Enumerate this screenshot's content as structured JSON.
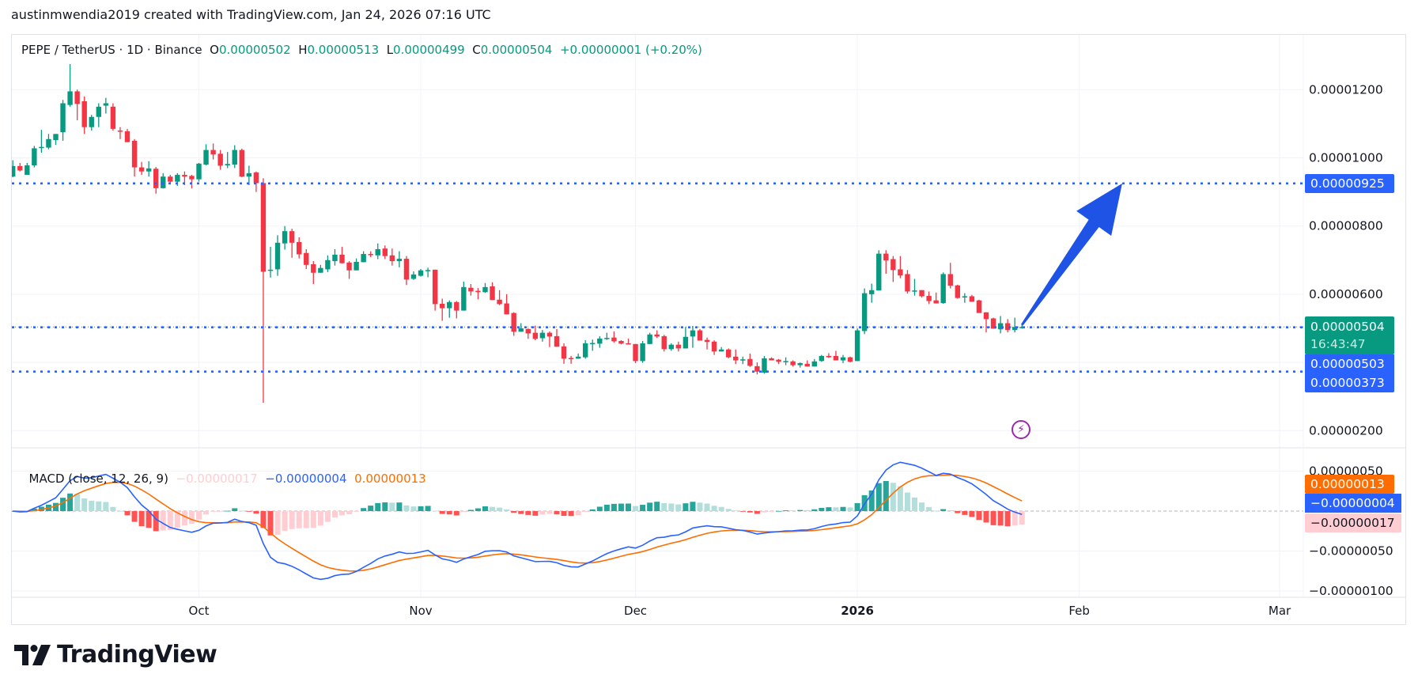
{
  "watermark": "austinmwendia2019 created with TradingView.com, Jan 24, 2026 07:16 UTC",
  "legend": {
    "symbol": "PEPE / TetherUS · 1D · Binance",
    "open_label": "O",
    "open": "0.00000502",
    "high_label": "H",
    "high": "0.00000513",
    "low_label": "L",
    "low": "0.00000499",
    "close_label": "C",
    "close": "0.00000504",
    "change": "+0.00000001 (+0.20%)"
  },
  "macd_legend": {
    "title": "MACD (close, 12, 26, 9)",
    "histogram": "−0.00000017",
    "macd": "−0.00000004",
    "signal": "0.00000013"
  },
  "price_tags": {
    "target": "0.00000925",
    "last_price": "0.00000504",
    "countdown": "16:43:47",
    "line_a": "0.00000503",
    "line_b": "0.00000373"
  },
  "macd_tags": {
    "signal": "0.00000013",
    "macd": "−0.00000004",
    "histogram": "−0.00000017"
  },
  "logo_text": "TradingView",
  "colors": {
    "up": "#089981",
    "down": "#f23645",
    "line": "#2962ff",
    "macd": "#2962ff",
    "signal": "#ff6d00",
    "hist_up_strong": "#26a69a",
    "hist_up_weak": "#b2dfdb",
    "hist_down_strong": "#ff5252",
    "hist_down_weak": "#ffcdd2",
    "alert": "#9c27b0"
  },
  "chart_data": {
    "type": "candlestick",
    "title": "PEPE / TetherUS · 1D · Binance",
    "price_axis": {
      "ticks": [
        {
          "value": 1.2e-05,
          "label": "0.00001200"
        },
        {
          "value": 1e-05,
          "label": "0.00001000"
        },
        {
          "value": 8e-06,
          "label": "0.00000800"
        },
        {
          "value": 6e-06,
          "label": "0.00000600"
        },
        {
          "value": 2e-06,
          "label": "0.00000200"
        }
      ],
      "gridlines": [
        1.2e-05,
        1e-05,
        8e-06,
        6e-06,
        4e-06,
        2e-06
      ]
    },
    "time_axis": [
      {
        "date": "2025-10-01",
        "label": "Oct"
      },
      {
        "date": "2025-11-01",
        "label": "Nov"
      },
      {
        "date": "2025-12-01",
        "label": "Dec"
      },
      {
        "date": "2026-01-01",
        "label": "2026"
      },
      {
        "date": "2026-02-01",
        "label": "Feb"
      },
      {
        "date": "2026-03-01",
        "label": "Mar"
      }
    ],
    "horizontal_lines": [
      {
        "value": 9.25e-06,
        "style": "dotted",
        "color": "#2962ff"
      },
      {
        "value": 5.03e-06,
        "style": "dotted",
        "color": "#2962ff"
      },
      {
        "value": 3.73e-06,
        "style": "dotted",
        "color": "#2962ff"
      },
      {
        "value": 5.04e-06,
        "style": "last-price",
        "color": "#089981"
      }
    ],
    "arrow": {
      "from": {
        "date": "2026-01-24",
        "value": 5.1e-06
      },
      "to": {
        "date": "2026-02-07",
        "value": 9.25e-06
      },
      "color": "#1e53e5"
    },
    "macd": {
      "params": [
        12,
        26,
        9
      ],
      "axis": [
        {
          "value": 5e-07,
          "label": "0.00000050"
        },
        {
          "value": -5e-07,
          "label": "−0.00000050"
        },
        {
          "value": -1e-06,
          "label": "−0.00000100"
        }
      ]
    },
    "candles_format": [
      "date",
      "open",
      "high",
      "low",
      "close"
    ],
    "candles": [
      [
        "2025-09-05",
        9.45e-06,
        9.93e-06,
        9.43e-06,
        9.76e-06
      ],
      [
        "2025-09-06",
        9.76e-06,
        9.85e-06,
        9.6e-06,
        9.63e-06
      ],
      [
        "2025-09-07",
        9.5e-06,
        9.85e-06,
        9.5e-06,
        9.78e-06
      ],
      [
        "2025-09-08",
        9.78e-06,
        1.035e-05,
        9.72e-06,
        1.028e-05
      ],
      [
        "2025-09-09",
        1.03e-05,
        1.082e-05,
        1.015e-05,
        1.032e-05
      ],
      [
        "2025-09-10",
        1.03e-05,
        1.07e-05,
        1.025e-05,
        1.055e-05
      ],
      [
        "2025-09-11",
        1.052e-05,
        1.07e-05,
        1.038e-05,
        1.07e-05
      ],
      [
        "2025-09-12",
        1.075e-05,
        1.17e-05,
        1.05e-05,
        1.16e-05
      ],
      [
        "2025-09-13",
        1.155e-05,
        1.275e-05,
        1.15e-05,
        1.195e-05
      ],
      [
        "2025-09-14",
        1.195e-05,
        1.2e-05,
        1.11e-05,
        1.158e-05
      ],
      [
        "2025-09-15",
        1.166e-05,
        1.18e-05,
        1.07e-05,
        1.09e-05
      ],
      [
        "2025-09-16",
        1.09e-05,
        1.126e-05,
        1.08e-05,
        1.12e-05
      ],
      [
        "2025-09-17",
        1.12e-05,
        1.16e-05,
        1.09e-05,
        1.15e-05
      ],
      [
        "2025-09-18",
        1.153e-05,
        1.176e-05,
        1.13e-05,
        1.16e-05
      ],
      [
        "2025-09-19",
        1.15e-05,
        1.16e-05,
        1.08e-05,
        1.085e-05
      ],
      [
        "2025-09-20",
        1.08e-05,
        1.09e-05,
        1.055e-05,
        1.077e-05
      ],
      [
        "2025-09-21",
        1.078e-05,
        1.085e-05,
        1.046e-05,
        1.046e-05
      ],
      [
        "2025-09-22",
        1.05e-05,
        1.055e-05,
        9.45e-06,
        9.72e-06
      ],
      [
        "2025-09-23",
        9.72e-06,
        9.88e-06,
        9.5e-06,
        9.6e-06
      ],
      [
        "2025-09-24",
        9.6e-06,
        9.9e-06,
        9.45e-06,
        9.69e-06
      ],
      [
        "2025-09-25",
        9.68e-06,
        9.73e-06,
        8.95e-06,
        9.11e-06
      ],
      [
        "2025-09-26",
        9.11e-06,
        9.55e-06,
        9.1e-06,
        9.45e-06
      ],
      [
        "2025-09-27",
        9.45e-06,
        9.5e-06,
        9.28e-06,
        9.3e-06
      ],
      [
        "2025-09-28",
        9.3e-06,
        9.55e-06,
        9.18e-06,
        9.5e-06
      ],
      [
        "2025-09-29",
        9.5e-06,
        9.6e-06,
        9.2e-06,
        9.45e-06
      ],
      [
        "2025-09-30",
        9.47e-06,
        9.5e-06,
        9.1e-06,
        9.37e-06
      ],
      [
        "2025-10-01",
        9.37e-06,
        9.85e-06,
        9.3e-06,
        9.83e-06
      ],
      [
        "2025-10-02",
        9.8e-06,
        1.04e-05,
        9.78e-06,
        1.023e-05
      ],
      [
        "2025-10-03",
        1.023e-05,
        1.042e-05,
        9.95e-06,
        1.01e-05
      ],
      [
        "2025-10-04",
        1.012e-05,
        1.023e-05,
        9.65e-06,
        9.77e-06
      ],
      [
        "2025-10-05",
        9.78e-06,
        1.017e-05,
        9.7e-06,
        9.82e-06
      ],
      [
        "2025-10-06",
        9.8e-06,
        1.037e-05,
        9.7e-06,
        1.023e-05
      ],
      [
        "2025-10-07",
        1.023e-05,
        1.027e-05,
        9.43e-06,
        9.45e-06
      ],
      [
        "2025-10-08",
        9.45e-06,
        9.77e-06,
        9.2e-06,
        9.55e-06
      ],
      [
        "2025-10-09",
        9.57e-06,
        9.6e-06,
        9e-06,
        9.26e-06
      ],
      [
        "2025-10-10",
        9.26e-06,
        9.4e-06,
        2.82e-06,
        6.66e-06
      ],
      [
        "2025-10-11",
        6.7e-06,
        7.39e-06,
        6.49e-06,
        6.72e-06
      ],
      [
        "2025-10-12",
        6.73e-06,
        7.73e-06,
        6.54e-06,
        7.51e-06
      ],
      [
        "2025-10-13",
        7.49e-06,
        8e-06,
        7.31e-06,
        7.85e-06
      ],
      [
        "2025-10-14",
        7.85e-06,
        7.92e-06,
        7.07e-06,
        7.51e-06
      ],
      [
        "2025-10-15",
        7.53e-06,
        7.67e-06,
        7.05e-06,
        7.17e-06
      ],
      [
        "2025-10-16",
        7.21e-06,
        7.32e-06,
        6.74e-06,
        6.86e-06
      ],
      [
        "2025-10-17",
        6.88e-06,
        6.97e-06,
        6.3e-06,
        6.63e-06
      ],
      [
        "2025-10-18",
        6.63e-06,
        6.86e-06,
        6.63e-06,
        6.77e-06
      ],
      [
        "2025-10-19",
        6.73e-06,
        7.14e-06,
        6.65e-06,
        7e-06
      ],
      [
        "2025-10-20",
        6.97e-06,
        7.32e-06,
        6.84e-06,
        7.16e-06
      ],
      [
        "2025-10-21",
        7.16e-06,
        7.39e-06,
        6.9e-06,
        6.91e-06
      ],
      [
        "2025-10-22",
        6.93e-06,
        6.97e-06,
        6.45e-06,
        6.7e-06
      ],
      [
        "2025-10-23",
        6.7e-06,
        7.05e-06,
        6.7e-06,
        6.95e-06
      ],
      [
        "2025-10-24",
        6.94e-06,
        7.26e-06,
        6.94e-06,
        7.18e-06
      ],
      [
        "2025-10-25",
        7.18e-06,
        7.26e-06,
        7.09e-06,
        7.17e-06
      ],
      [
        "2025-10-26",
        7.14e-06,
        7.49e-06,
        7.03e-06,
        7.32e-06
      ],
      [
        "2025-10-27",
        7.34e-06,
        7.43e-06,
        7.03e-06,
        7.12e-06
      ],
      [
        "2025-10-28",
        7.14e-06,
        7.34e-06,
        6.84e-06,
        6.97e-06
      ],
      [
        "2025-10-29",
        6.97e-06,
        7.26e-06,
        6.79e-06,
        7.04e-06
      ],
      [
        "2025-10-30",
        7.04e-06,
        7.12e-06,
        6.27e-06,
        6.43e-06
      ],
      [
        "2025-10-31",
        6.45e-06,
        6.67e-06,
        6.42e-06,
        6.58e-06
      ],
      [
        "2025-11-01",
        6.54e-06,
        6.74e-06,
        6.52e-06,
        6.7e-06
      ],
      [
        "2025-11-02",
        6.7e-06,
        6.78e-06,
        6.5e-06,
        6.71e-06
      ],
      [
        "2025-11-03",
        6.72e-06,
        6.72e-06,
        5.52e-06,
        5.71e-06
      ],
      [
        "2025-11-04",
        5.72e-06,
        5.87e-06,
        5.22e-06,
        5.59e-06
      ],
      [
        "2025-11-05",
        5.59e-06,
        5.82e-06,
        5.31e-06,
        5.77e-06
      ],
      [
        "2025-11-06",
        5.77e-06,
        5.8e-06,
        5.29e-06,
        5.52e-06
      ],
      [
        "2025-11-07",
        5.52e-06,
        6.37e-06,
        5.52e-06,
        6.21e-06
      ],
      [
        "2025-11-08",
        6.19e-06,
        6.3e-06,
        5.96e-06,
        6.08e-06
      ],
      [
        "2025-11-09",
        6.1e-06,
        6.18e-06,
        5.85e-06,
        6.06e-06
      ],
      [
        "2025-11-10",
        6.06e-06,
        6.33e-06,
        6.04e-06,
        6.21e-06
      ],
      [
        "2025-11-11",
        6.23e-06,
        6.35e-06,
        5.83e-06,
        5.83e-06
      ],
      [
        "2025-11-12",
        5.84e-06,
        6.12e-06,
        5.68e-06,
        5.71e-06
      ],
      [
        "2025-11-13",
        5.73e-06,
        6e-06,
        5.41e-06,
        5.41e-06
      ],
      [
        "2025-11-14",
        5.45e-06,
        5.47e-06,
        4.78e-06,
        4.9e-06
      ],
      [
        "2025-11-15",
        4.9e-06,
        5.15e-06,
        4.9e-06,
        5e-06
      ],
      [
        "2025-11-16",
        4.98e-06,
        5e-06,
        4.69e-06,
        4.85e-06
      ],
      [
        "2025-11-17",
        4.87e-06,
        5.08e-06,
        4.65e-06,
        4.69e-06
      ],
      [
        "2025-11-18",
        4.71e-06,
        4.95e-06,
        4.61e-06,
        4.87e-06
      ],
      [
        "2025-11-19",
        4.87e-06,
        4.91e-06,
        4.45e-06,
        4.76e-06
      ],
      [
        "2025-11-20",
        4.77e-06,
        4.98e-06,
        4.46e-06,
        4.46e-06
      ],
      [
        "2025-11-21",
        4.47e-06,
        4.56e-06,
        3.96e-06,
        4.11e-06
      ],
      [
        "2025-11-22",
        4.13e-06,
        4.19e-06,
        3.96e-06,
        4.12e-06
      ],
      [
        "2025-11-23",
        4.11e-06,
        4.26e-06,
        4.11e-06,
        4.17e-06
      ],
      [
        "2025-11-24",
        4.15e-06,
        4.65e-06,
        4.11e-06,
        4.56e-06
      ],
      [
        "2025-11-25",
        4.55e-06,
        4.67e-06,
        4.34e-06,
        4.57e-06
      ],
      [
        "2025-11-26",
        4.55e-06,
        4.77e-06,
        4.43e-06,
        4.7e-06
      ],
      [
        "2025-11-27",
        4.7e-06,
        4.87e-06,
        4.66e-06,
        4.72e-06
      ],
      [
        "2025-11-28",
        4.73e-06,
        4.91e-06,
        4.58e-06,
        4.62e-06
      ],
      [
        "2025-11-29",
        4.63e-06,
        4.65e-06,
        4.53e-06,
        4.55e-06
      ],
      [
        "2025-11-30",
        4.56e-06,
        4.7e-06,
        4.53e-06,
        4.53e-06
      ],
      [
        "2025-12-01",
        4.54e-06,
        4.54e-06,
        3.98e-06,
        4.04e-06
      ],
      [
        "2025-12-02",
        4.04e-06,
        4.63e-06,
        3.99e-06,
        4.56e-06
      ],
      [
        "2025-12-03",
        4.54e-06,
        4.87e-06,
        4.54e-06,
        4.82e-06
      ],
      [
        "2025-12-04",
        4.82e-06,
        4.94e-06,
        4.72e-06,
        4.76e-06
      ],
      [
        "2025-12-05",
        4.77e-06,
        4.81e-06,
        4.32e-06,
        4.39e-06
      ],
      [
        "2025-12-06",
        4.39e-06,
        4.56e-06,
        4.34e-06,
        4.52e-06
      ],
      [
        "2025-12-07",
        4.52e-06,
        4.61e-06,
        4.32e-06,
        4.41e-06
      ],
      [
        "2025-12-08",
        4.41e-06,
        5.04e-06,
        4.41e-06,
        4.75e-06
      ],
      [
        "2025-12-09",
        4.76e-06,
        5.07e-06,
        4.43e-06,
        4.94e-06
      ],
      [
        "2025-12-10",
        4.94e-06,
        4.98e-06,
        4.64e-06,
        4.64e-06
      ],
      [
        "2025-12-11",
        4.66e-06,
        4.73e-06,
        4.38e-06,
        4.6e-06
      ],
      [
        "2025-12-12",
        4.61e-06,
        4.65e-06,
        4.22e-06,
        4.32e-06
      ],
      [
        "2025-12-13",
        4.32e-06,
        4.45e-06,
        4.32e-06,
        4.38e-06
      ],
      [
        "2025-12-14",
        4.38e-06,
        4.41e-06,
        4.12e-06,
        4.15e-06
      ],
      [
        "2025-12-15",
        4.17e-06,
        4.38e-06,
        3.95e-06,
        4.06e-06
      ],
      [
        "2025-12-16",
        4.08e-06,
        4.17e-06,
        3.95e-06,
        4.09e-06
      ],
      [
        "2025-12-17",
        4.1e-06,
        4.26e-06,
        3.87e-06,
        3.9e-06
      ],
      [
        "2025-12-18",
        3.89e-06,
        4e-06,
        3.65e-06,
        3.73e-06
      ],
      [
        "2025-12-19",
        3.7e-06,
        4.19e-06,
        3.67e-06,
        4.12e-06
      ],
      [
        "2025-12-20",
        4.12e-06,
        4.15e-06,
        4.06e-06,
        4.06e-06
      ],
      [
        "2025-12-21",
        4.08e-06,
        4.1e-06,
        3.95e-06,
        4.02e-06
      ],
      [
        "2025-12-22",
        4.03e-06,
        4.15e-06,
        3.92e-06,
        4.04e-06
      ],
      [
        "2025-12-23",
        4.03e-06,
        4.06e-06,
        3.88e-06,
        3.92e-06
      ],
      [
        "2025-12-24",
        3.92e-06,
        4e-06,
        3.85e-06,
        3.98e-06
      ],
      [
        "2025-12-25",
        3.96e-06,
        4.06e-06,
        3.88e-06,
        3.88e-06
      ],
      [
        "2025-12-26",
        3.88e-06,
        4.1e-06,
        3.88e-06,
        4.03e-06
      ],
      [
        "2025-12-27",
        4.04e-06,
        4.22e-06,
        4.02e-06,
        4.19e-06
      ],
      [
        "2025-12-28",
        4.19e-06,
        4.27e-06,
        4.13e-06,
        4.15e-06
      ],
      [
        "2025-12-29",
        4.19e-06,
        4.34e-06,
        4.06e-06,
        4.06e-06
      ],
      [
        "2025-12-30",
        4.06e-06,
        4.22e-06,
        3.98e-06,
        4.15e-06
      ],
      [
        "2025-12-31",
        4.15e-06,
        4.17e-06,
        4e-06,
        4.02e-06
      ],
      [
        "2026-01-01",
        4.04e-06,
        5e-06,
        4.04e-06,
        4.94e-06
      ],
      [
        "2026-01-02",
        4.92e-06,
        6.17e-06,
        4.83e-06,
        6.03e-06
      ],
      [
        "2026-01-03",
        6e-06,
        6.31e-06,
        5.75e-06,
        6.12e-06
      ],
      [
        "2026-01-04",
        6.11e-06,
        7.29e-06,
        6.11e-06,
        7.19e-06
      ],
      [
        "2026-01-05",
        7.19e-06,
        7.29e-06,
        6.6e-06,
        6.99e-06
      ],
      [
        "2026-01-06",
        7.03e-06,
        7.12e-06,
        6.36e-06,
        6.71e-06
      ],
      [
        "2026-01-07",
        6.73e-06,
        7.12e-06,
        6.47e-06,
        6.55e-06
      ],
      [
        "2026-01-08",
        6.59e-06,
        6.71e-06,
        6.02e-06,
        6.08e-06
      ],
      [
        "2026-01-09",
        6.08e-06,
        6.45e-06,
        5.96e-06,
        6.11e-06
      ],
      [
        "2026-01-10",
        6.12e-06,
        6.12e-06,
        5.9e-06,
        5.94e-06
      ],
      [
        "2026-01-11",
        5.95e-06,
        6.08e-06,
        5.71e-06,
        5.8e-06
      ],
      [
        "2026-01-12",
        5.82e-06,
        6.05e-06,
        5.73e-06,
        5.73e-06
      ],
      [
        "2026-01-13",
        5.74e-06,
        6.64e-06,
        5.72e-06,
        6.59e-06
      ],
      [
        "2026-01-14",
        6.59e-06,
        6.92e-06,
        6.17e-06,
        6.25e-06
      ],
      [
        "2026-01-15",
        6.26e-06,
        6.28e-06,
        5.87e-06,
        5.89e-06
      ],
      [
        "2026-01-16",
        5.92e-06,
        6.03e-06,
        5.75e-06,
        5.94e-06
      ],
      [
        "2026-01-17",
        5.94e-06,
        5.98e-06,
        5.78e-06,
        5.78e-06
      ],
      [
        "2026-01-18",
        5.82e-06,
        5.84e-06,
        5.45e-06,
        5.45e-06
      ],
      [
        "2026-01-19",
        5.47e-06,
        5.47e-06,
        4.88e-06,
        5.27e-06
      ],
      [
        "2026-01-20",
        5.29e-06,
        5.31e-06,
        4.99e-06,
        4.99e-06
      ],
      [
        "2026-01-21",
        4.97e-06,
        5.36e-06,
        4.85e-06,
        5.15e-06
      ],
      [
        "2026-01-22",
        5.15e-06,
        5.27e-06,
        4.88e-06,
        4.95e-06
      ],
      [
        "2026-01-23",
        4.95e-06,
        5.31e-06,
        4.88e-06,
        5.04e-06
      ],
      [
        "2026-01-24",
        5.02e-06,
        5.13e-06,
        4.99e-06,
        5.04e-06
      ]
    ]
  }
}
